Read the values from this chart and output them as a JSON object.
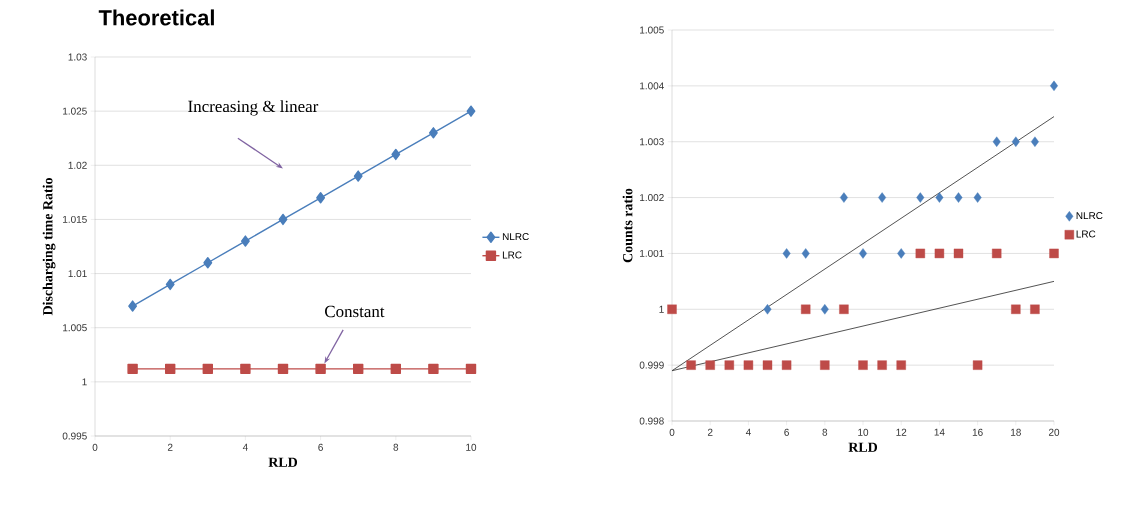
{
  "chart_data": [
    {
      "type": "line",
      "title": "Theoretical",
      "xlabel": "RLD",
      "ylabel": "Discharging time Ratio",
      "x": [
        1,
        2,
        3,
        4,
        5,
        6,
        7,
        8,
        9,
        10
      ],
      "series": [
        {
          "name": "NLRC",
          "color": "#4a7ebb",
          "marker": "diamond",
          "values": [
            1.007,
            1.009,
            1.011,
            1.013,
            1.015,
            1.017,
            1.019,
            1.021,
            1.023,
            1.025
          ]
        },
        {
          "name": "LRC",
          "color": "#be4b48",
          "marker": "square",
          "values": [
            1.0012,
            1.0012,
            1.0012,
            1.0012,
            1.0012,
            1.0012,
            1.0012,
            1.0012,
            1.0012,
            1.0012
          ]
        }
      ],
      "xlim": [
        0,
        10
      ],
      "xticks": [
        0,
        2,
        4,
        6,
        8,
        10
      ],
      "ylim": [
        0.995,
        1.03
      ],
      "yticks": [
        0.995,
        1,
        1.005,
        1.01,
        1.015,
        1.02,
        1.025,
        1.03
      ],
      "grid": "y",
      "legend": "right",
      "annotations": [
        "Increasing & linear",
        {
          "text": "Constant",
          "x": 6.1,
          "y": 1.0017
        }
      ]
    },
    {
      "type": "scatter",
      "xlabel": "RLD",
      "ylabel": "Counts ratio",
      "series": [
        {
          "name": "NLRC",
          "color": "#4a7ebb",
          "marker": "diamond",
          "x": [
            5,
            6,
            7,
            8,
            9,
            10,
            11,
            12,
            13,
            14,
            15,
            16,
            17,
            18,
            19,
            20
          ],
          "values": [
            1.0,
            1.001,
            1.001,
            1.0,
            1.002,
            1.001,
            1.002,
            1.001,
            1.002,
            1.002,
            1.002,
            1.002,
            1.003,
            1.003,
            1.003,
            1.004
          ]
        },
        {
          "name": "LRC",
          "color": "#be4b48",
          "marker": "square",
          "x": [
            0,
            1,
            2,
            3,
            4,
            5,
            6,
            7,
            8,
            9,
            10,
            11,
            12,
            13,
            14,
            15,
            16,
            17,
            18,
            19,
            20
          ],
          "values": [
            1.0,
            0.999,
            0.999,
            0.999,
            0.999,
            0.999,
            0.999,
            1.0,
            0.999,
            1.0,
            0.999,
            0.999,
            0.999,
            1.001,
            1.001,
            1.001,
            0.999,
            1.001,
            1.0,
            1.0,
            1.001
          ]
        },
        {
          "type": "line",
          "color": "#404040",
          "marker": "none",
          "x": [
            0,
            20
          ],
          "values": [
            0.9989,
            1.00345
          ]
        },
        {
          "type": "line",
          "color": "#404040",
          "marker": "none",
          "x": [
            0,
            20
          ],
          "values": [
            0.9989,
            1.0005
          ]
        }
      ],
      "xlim": [
        0,
        20
      ],
      "xticks": [
        0,
        2,
        4,
        6,
        8,
        10,
        12,
        14,
        16,
        18,
        20
      ],
      "ylim": [
        0.998,
        1.005
      ],
      "yticks": [
        0.998,
        0.999,
        1,
        1.001,
        1.002,
        1.003,
        1.004,
        1.005
      ],
      "grid": "y",
      "legend": "right"
    }
  ]
}
